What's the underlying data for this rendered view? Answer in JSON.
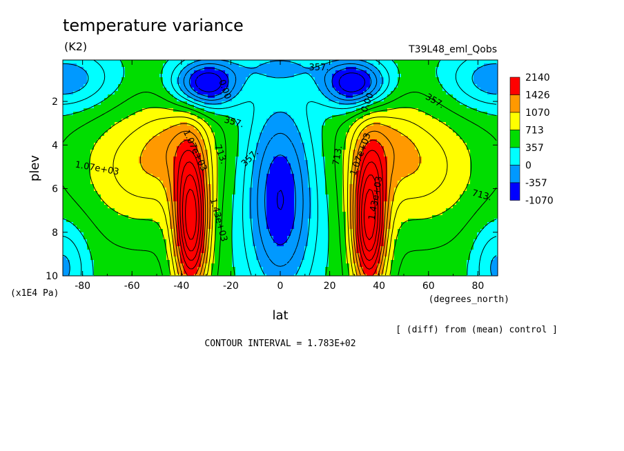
{
  "chart_data": {
    "type": "heatmap",
    "title": "temperature variance",
    "units": "(K2)",
    "run_label": "T39L48_eml_Qobs",
    "xlabel": "lat",
    "x_units": "(degrees_north)",
    "ylabel": "plev",
    "y_units": "(x1E4 Pa)",
    "xlim": [
      -88,
      88
    ],
    "ylim": [
      10,
      0.1
    ],
    "x_ticks": [
      "-80",
      "-60",
      "-40",
      "-20",
      "0",
      "20",
      "40",
      "60",
      "80"
    ],
    "y_ticks": [
      "2",
      "4",
      "6",
      "8",
      "10"
    ],
    "colorbar": {
      "labels": [
        "2140",
        "1426",
        "1070",
        "713",
        "357",
        "0",
        "-357",
        "-1070"
      ],
      "colors": [
        "#ff0000",
        "#ff9900",
        "#ffff00",
        "#00dd00",
        "#00ffff",
        "#0099ff",
        "#0000ff"
      ]
    },
    "contour_labels": [
      "357.",
      "0.00",
      "0.00",
      "357.",
      "357.",
      "357.",
      "713.",
      "713.",
      "713.",
      "1.07e+03",
      "1.07e+03",
      "1.07e+03",
      "1.43e+03",
      "1.43e+03"
    ],
    "note": "[ (diff) from (mean) control ]",
    "contour_interval": "CONTOUR INTERVAL = 1.783E+02",
    "field_description": "Symmetric temperature variance: maxima (>1426) near 35-40 degrees latitude at 5-10 x1E4 Pa, minima (<0) near 30 degrees at 1-2 x1E4 Pa, low values over the equator"
  }
}
